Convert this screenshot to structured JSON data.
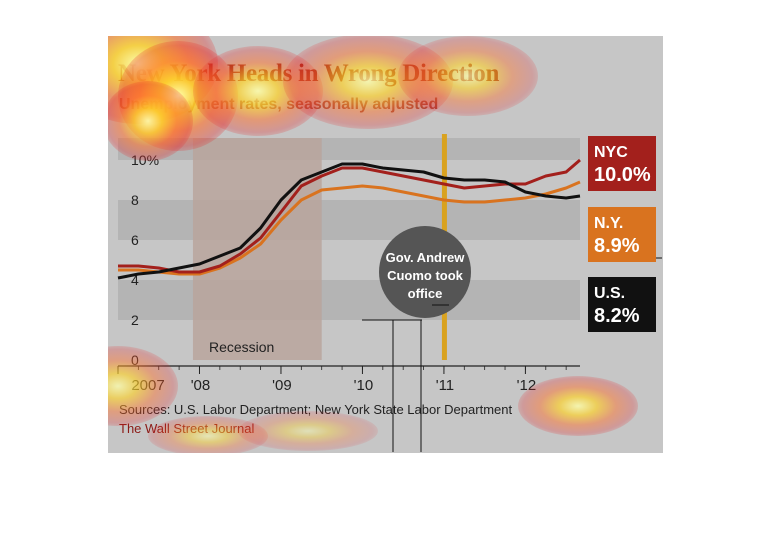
{
  "title": "New York Heads in Wrong Direction",
  "subtitle": "Unemployment rates, seasonally adjusted",
  "source": "Sources: U.S. Labor Department; New York State Labor Department",
  "credit": "The Wall Street Journal",
  "annotations": {
    "recession": "Recession",
    "cuomo_line1": "Gov. Andrew",
    "cuomo_line2": "Cuomo took",
    "cuomo_line3": "office"
  },
  "tags": {
    "nyc": {
      "name": "NYC",
      "value": "10.0%"
    },
    "ny": {
      "name": "N.Y.",
      "value": "8.9%"
    },
    "us": {
      "name": "U.S.",
      "value": "8.2%"
    }
  },
  "colors": {
    "nyc": "#a3201c",
    "ny": "#d9731f",
    "us": "#111111",
    "cuomo_line": "#d9a21f",
    "recession_band": "#b8a49c"
  },
  "chart_data": {
    "type": "line",
    "title": "New York Heads in Wrong Direction",
    "subtitle": "Unemployment rates, seasonally adjusted",
    "xlabel": "",
    "ylabel": "",
    "xlim": [
      2007.0,
      2012.67
    ],
    "ylim": [
      0,
      10
    ],
    "y_ticks": [
      0,
      2,
      4,
      6,
      8,
      10
    ],
    "y_tick_labels": [
      "0",
      "2",
      "4",
      "6",
      "8",
      "10%"
    ],
    "x_ticks": [
      2007.0,
      2008.0,
      2009.0,
      2010.0,
      2011.0,
      2012.0
    ],
    "x_tick_labels": [
      "2007",
      "'08",
      "'09",
      "'10",
      "'11",
      "'12"
    ],
    "recession": [
      2007.92,
      2009.5
    ],
    "cuomo_took_office": 2011.0,
    "legend": "right",
    "grid": "horizontal bands",
    "series": [
      {
        "name": "NYC",
        "x": [
          2007.0,
          2007.25,
          2007.5,
          2007.75,
          2008.0,
          2008.25,
          2008.5,
          2008.75,
          2009.0,
          2009.25,
          2009.5,
          2009.75,
          2010.0,
          2010.25,
          2010.5,
          2010.75,
          2011.0,
          2011.25,
          2011.5,
          2011.75,
          2012.0,
          2012.25,
          2012.5,
          2012.67
        ],
        "values": [
          4.7,
          4.7,
          4.6,
          4.4,
          4.4,
          4.7,
          5.3,
          6.1,
          7.4,
          8.7,
          9.2,
          9.6,
          9.6,
          9.4,
          9.2,
          9.0,
          8.8,
          8.6,
          8.7,
          8.8,
          8.8,
          9.2,
          9.4,
          10.0
        ]
      },
      {
        "name": "N.Y.",
        "x": [
          2007.0,
          2007.25,
          2007.5,
          2007.75,
          2008.0,
          2008.25,
          2008.5,
          2008.75,
          2009.0,
          2009.25,
          2009.5,
          2009.75,
          2010.0,
          2010.25,
          2010.5,
          2010.75,
          2011.0,
          2011.25,
          2011.5,
          2011.75,
          2012.0,
          2012.25,
          2012.5,
          2012.67
        ],
        "values": [
          4.5,
          4.5,
          4.4,
          4.3,
          4.3,
          4.6,
          5.1,
          5.8,
          7.0,
          8.0,
          8.5,
          8.6,
          8.7,
          8.6,
          8.4,
          8.2,
          8.0,
          7.9,
          7.9,
          8.0,
          8.1,
          8.3,
          8.6,
          8.9
        ]
      },
      {
        "name": "U.S.",
        "x": [
          2007.0,
          2007.25,
          2007.5,
          2007.75,
          2008.0,
          2008.25,
          2008.5,
          2008.75,
          2009.0,
          2009.25,
          2009.5,
          2009.75,
          2010.0,
          2010.25,
          2010.5,
          2010.75,
          2011.0,
          2011.25,
          2011.5,
          2011.75,
          2012.0,
          2012.25,
          2012.5,
          2012.67
        ],
        "values": [
          4.1,
          4.3,
          4.4,
          4.6,
          4.8,
          5.2,
          5.6,
          6.6,
          8.0,
          9.0,
          9.4,
          9.8,
          9.8,
          9.6,
          9.5,
          9.4,
          9.1,
          9.0,
          9.0,
          8.9,
          8.4,
          8.2,
          8.1,
          8.2
        ]
      }
    ]
  }
}
